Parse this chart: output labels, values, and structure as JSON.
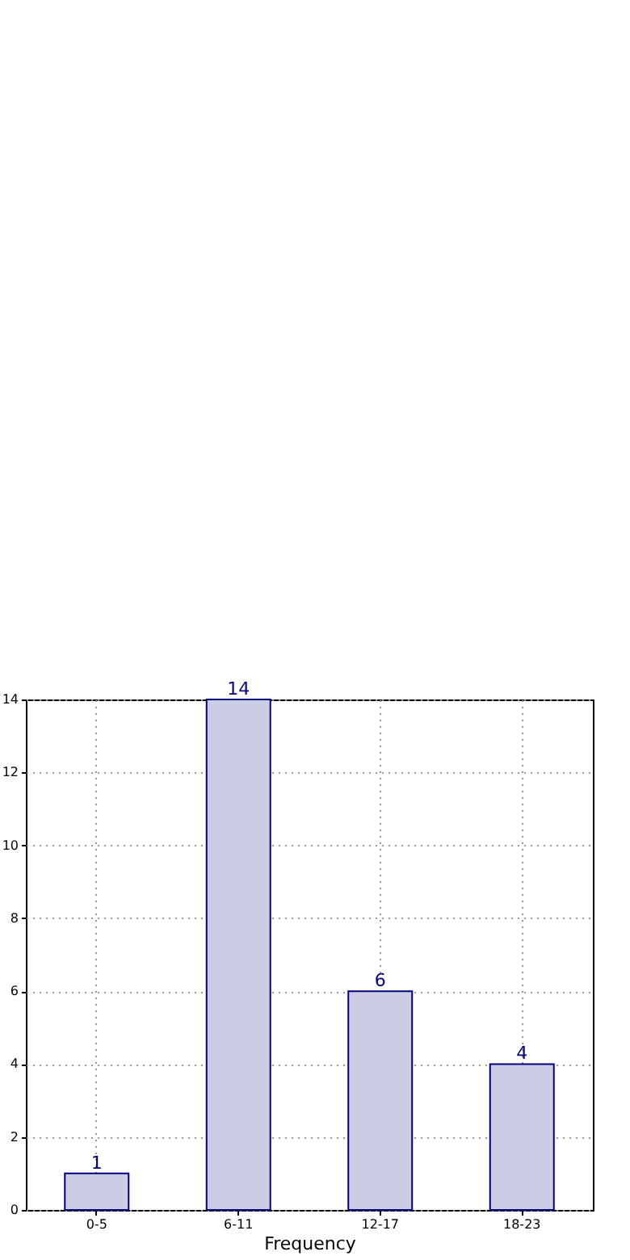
{
  "chart_data": {
    "type": "bar",
    "xlabel": "Frequency",
    "categories": [
      "0-5",
      "6-11",
      "12-17",
      "18-23"
    ],
    "series": [
      {
        "color": "#cccce4",
        "values": [
          1,
          14,
          6,
          4
        ]
      }
    ],
    "ylim": [
      0,
      14
    ],
    "yticks": [
      0,
      2,
      4,
      6,
      8,
      10,
      12,
      14
    ],
    "grid": true,
    "data_labels": true
  }
}
